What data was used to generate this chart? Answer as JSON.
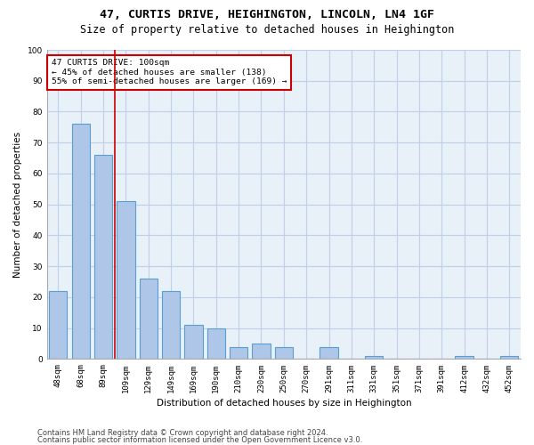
{
  "title1": "47, CURTIS DRIVE, HEIGHINGTON, LINCOLN, LN4 1GF",
  "title2": "Size of property relative to detached houses in Heighington",
  "xlabel": "Distribution of detached houses by size in Heighington",
  "ylabel": "Number of detached properties",
  "categories": [
    "48sqm",
    "68sqm",
    "89sqm",
    "109sqm",
    "129sqm",
    "149sqm",
    "169sqm",
    "190sqm",
    "210sqm",
    "230sqm",
    "250sqm",
    "270sqm",
    "291sqm",
    "311sqm",
    "331sqm",
    "351sqm",
    "371sqm",
    "391sqm",
    "412sqm",
    "432sqm",
    "452sqm"
  ],
  "values": [
    22,
    76,
    66,
    51,
    26,
    22,
    11,
    10,
    4,
    5,
    4,
    0,
    4,
    0,
    1,
    0,
    0,
    0,
    1,
    0,
    1
  ],
  "bar_color": "#aec6e8",
  "bar_edge_color": "#5a9fd4",
  "bar_edge_width": 0.8,
  "vline_color": "#cc0000",
  "annotation_text": "47 CURTIS DRIVE: 100sqm\n← 45% of detached houses are smaller (138)\n55% of semi-detached houses are larger (169) →",
  "annotation_box_color": "white",
  "annotation_box_edge": "#cc0000",
  "ylim": [
    0,
    100
  ],
  "yticks": [
    0,
    10,
    20,
    30,
    40,
    50,
    60,
    70,
    80,
    90,
    100
  ],
  "grid_color": "#c0d0e8",
  "bg_color": "#e8f0f8",
  "footer1": "Contains HM Land Registry data © Crown copyright and database right 2024.",
  "footer2": "Contains public sector information licensed under the Open Government Licence v3.0.",
  "title1_fontsize": 9.5,
  "title2_fontsize": 8.5,
  "xlabel_fontsize": 7.5,
  "ylabel_fontsize": 7.5,
  "tick_fontsize": 6.5,
  "annotation_fontsize": 6.8,
  "footer_fontsize": 6.0
}
